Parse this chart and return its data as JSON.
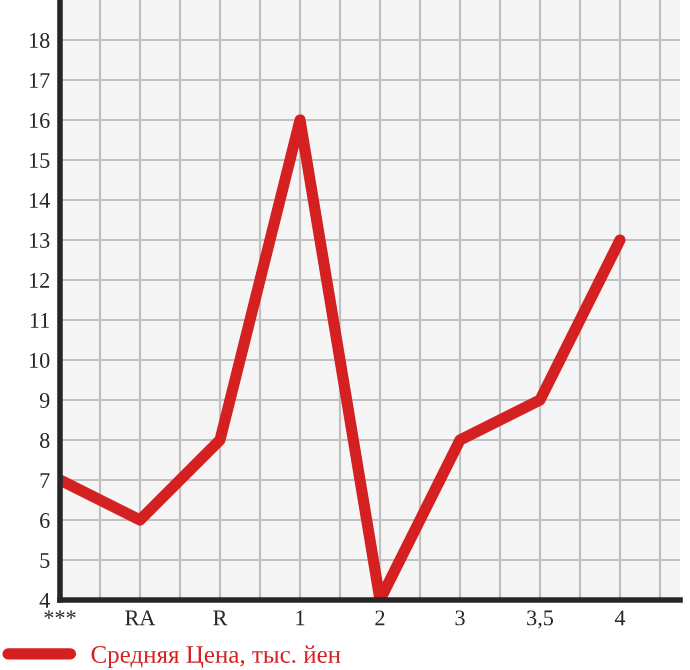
{
  "chart_data": {
    "type": "line",
    "categories": [
      "***",
      "RA",
      "R",
      "1",
      "2",
      "3",
      "3,5",
      "4"
    ],
    "series": [
      {
        "name": "Средняя Цена, тыс. йен",
        "color": "#d42020",
        "values": [
          7,
          6,
          8,
          16,
          4,
          8,
          9,
          13
        ]
      }
    ],
    "ylim": [
      4,
      19
    ],
    "yticks": [
      4,
      5,
      6,
      7,
      8,
      9,
      10,
      11,
      12,
      13,
      14,
      15,
      16,
      17,
      18
    ],
    "grid": true,
    "legend": "bottom",
    "marker": "none",
    "line_style": "solid"
  }
}
